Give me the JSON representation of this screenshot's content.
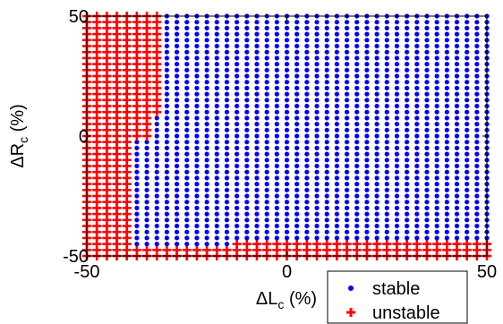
{
  "chart_data": {
    "type": "scatter",
    "xlabel": {
      "prefix": "ΔL",
      "sub": "c",
      "suffix": " (%)"
    },
    "ylabel": {
      "prefix": "ΔR",
      "sub": "c",
      "suffix": " (%)"
    },
    "xlim": [
      -50,
      50
    ],
    "ylim": [
      -50,
      50
    ],
    "x_ticks": [
      "-50",
      "0",
      "50"
    ],
    "y_ticks": [
      "-50",
      "0",
      "50"
    ],
    "x_tick_values": [
      -50,
      0,
      50
    ],
    "y_tick_values": [
      -50,
      0,
      50
    ],
    "grid": false,
    "legend_placement": "bottom-right",
    "grid_points": {
      "x_start": -50,
      "x_step": 2.5,
      "x_count": 41,
      "y_start": -50,
      "y_step": 2.5,
      "y_count": 41
    },
    "series": [
      {
        "name": "stable",
        "marker": "dot",
        "color": "#0000ff",
        "description_rule": "points not in unstable region"
      },
      {
        "name": "unstable",
        "marker": "plus",
        "color": "#ff0000",
        "unstable_rule": {
          "x_le": -40,
          "x_le_for_y_ge_10": -32.5,
          "x_le_for_y_ge_0": -35,
          "y_le": -47.5,
          "y_le_for_x_ge_-12.5": -45,
          "y_le_for_x_lt_-12.5": -47.5
        }
      }
    ]
  },
  "legend": {
    "items": [
      {
        "label": "stable",
        "color": "#0000ff",
        "icon": "dot-icon"
      },
      {
        "label": "unstable",
        "color": "#ff0000",
        "icon": "plus-icon"
      }
    ]
  }
}
